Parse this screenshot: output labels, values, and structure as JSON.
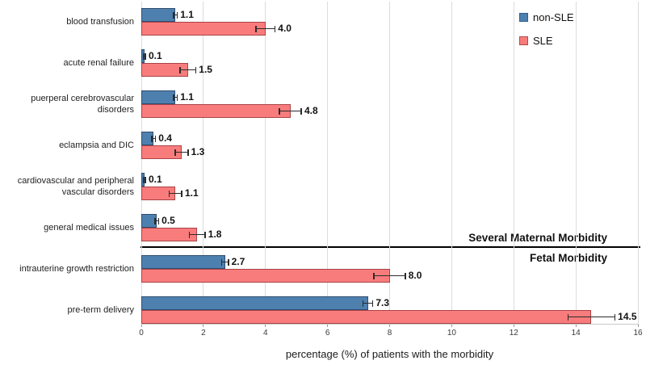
{
  "chart_data": {
    "type": "bar",
    "orientation": "horizontal",
    "title": "",
    "xlabel": "percentage (%) of patients with the morbidity",
    "ylabel": "",
    "xlim": [
      0,
      16
    ],
    "xticks": [
      0,
      2,
      4,
      6,
      8,
      10,
      12,
      14,
      16
    ],
    "grid": "vertical-light-gray",
    "legend_position": "top-right",
    "error_bars": true,
    "categories": [
      "blood transfusion",
      "acute renal failure",
      "puerperal cerebrovascular disorders",
      "eclampsia and DIC",
      "cardiovascular and peripheral vascular disorders",
      "general medical issues",
      "intrauterine growth restriction",
      "pre-term delivery"
    ],
    "series": [
      {
        "name": "non-SLE",
        "color": "#4e80af",
        "border_color": "#2e4d6e",
        "values": [
          1.1,
          0.1,
          1.1,
          0.4,
          0.1,
          0.5,
          2.7,
          7.3
        ],
        "errors": [
          0.05,
          0.03,
          0.05,
          0.05,
          0.03,
          0.05,
          0.1,
          0.15
        ],
        "labels": [
          "1.1",
          "0.1",
          "1.1",
          "0.4",
          "0.1",
          "0.5",
          "2.7",
          "7.3"
        ]
      },
      {
        "name": "SLE",
        "color": "#f97c7c",
        "border_color": "#a94348",
        "values": [
          4.0,
          1.5,
          4.8,
          1.3,
          1.1,
          1.8,
          8.0,
          14.5
        ],
        "errors": [
          0.3,
          0.25,
          0.35,
          0.2,
          0.2,
          0.25,
          0.5,
          0.75
        ],
        "labels": [
          "4.0",
          "1.5",
          "4.8",
          "1.3",
          "1.1",
          "1.8",
          "8.0",
          "14.5"
        ]
      }
    ],
    "divider": {
      "after_category_index": 5,
      "above_label": "Several Maternal Morbidity",
      "below_label": "Fetal Morbidity"
    }
  }
}
